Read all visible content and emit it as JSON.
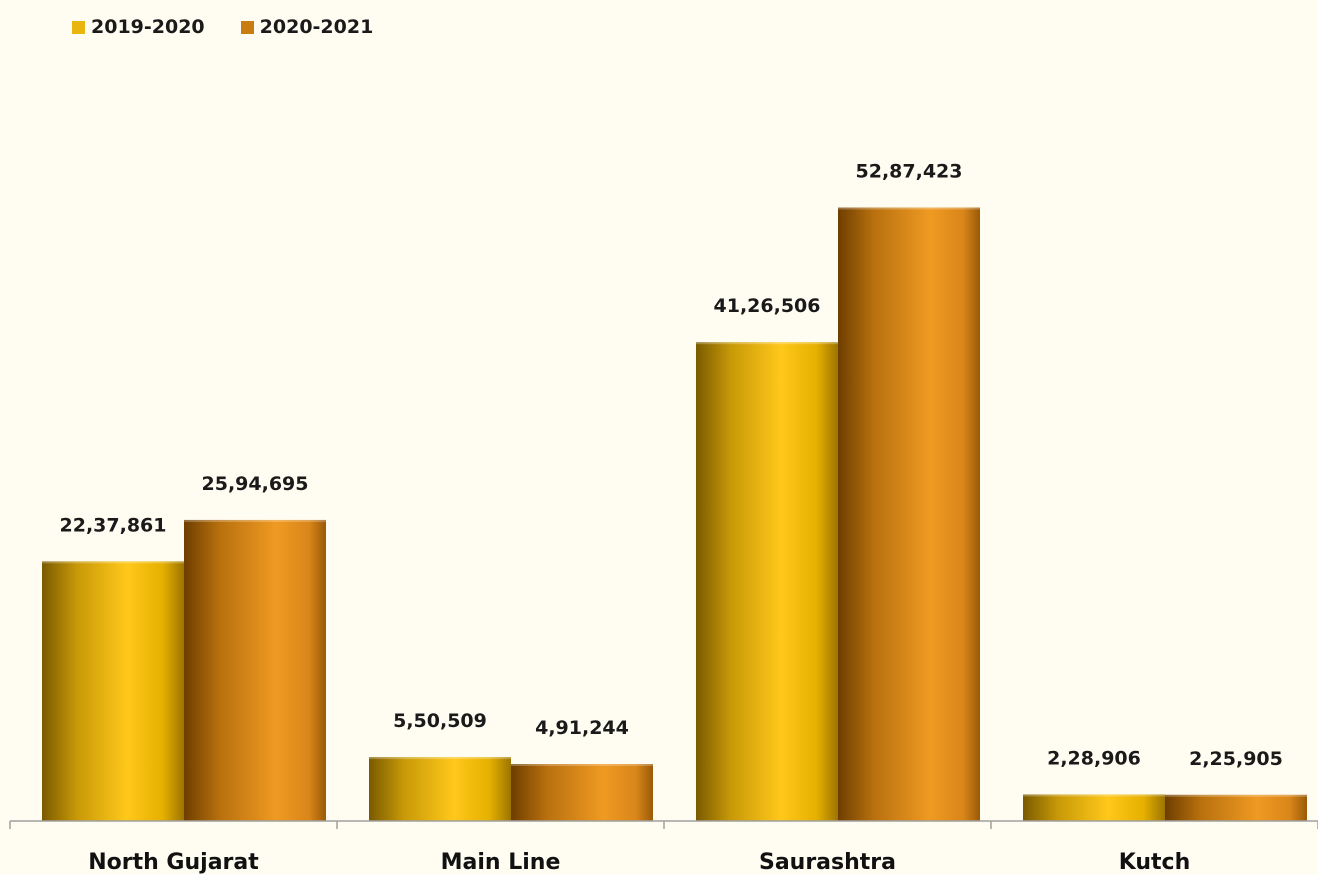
{
  "chart_data": {
    "type": "bar",
    "categories": [
      "North Gujarat",
      "Main Line",
      "Saurashtra",
      "Kutch"
    ],
    "series": [
      {
        "name": "2019-2020",
        "values": [
          2237861,
          550509,
          4126506,
          228906
        ],
        "labels": [
          "22,37,861",
          "5,50,509",
          "41,26,506",
          "2,28,906"
        ],
        "color": "#f5c518"
      },
      {
        "name": "2020-2021",
        "values": [
          2594695,
          491244,
          5287423,
          225905
        ],
        "labels": [
          "25,94,695",
          "4,91,244",
          "52,87,423",
          "2,25,905"
        ],
        "color": "#d98a1a"
      }
    ],
    "ylim": [
      0,
      6300000
    ],
    "grid": false,
    "legend_position": "top-left"
  }
}
